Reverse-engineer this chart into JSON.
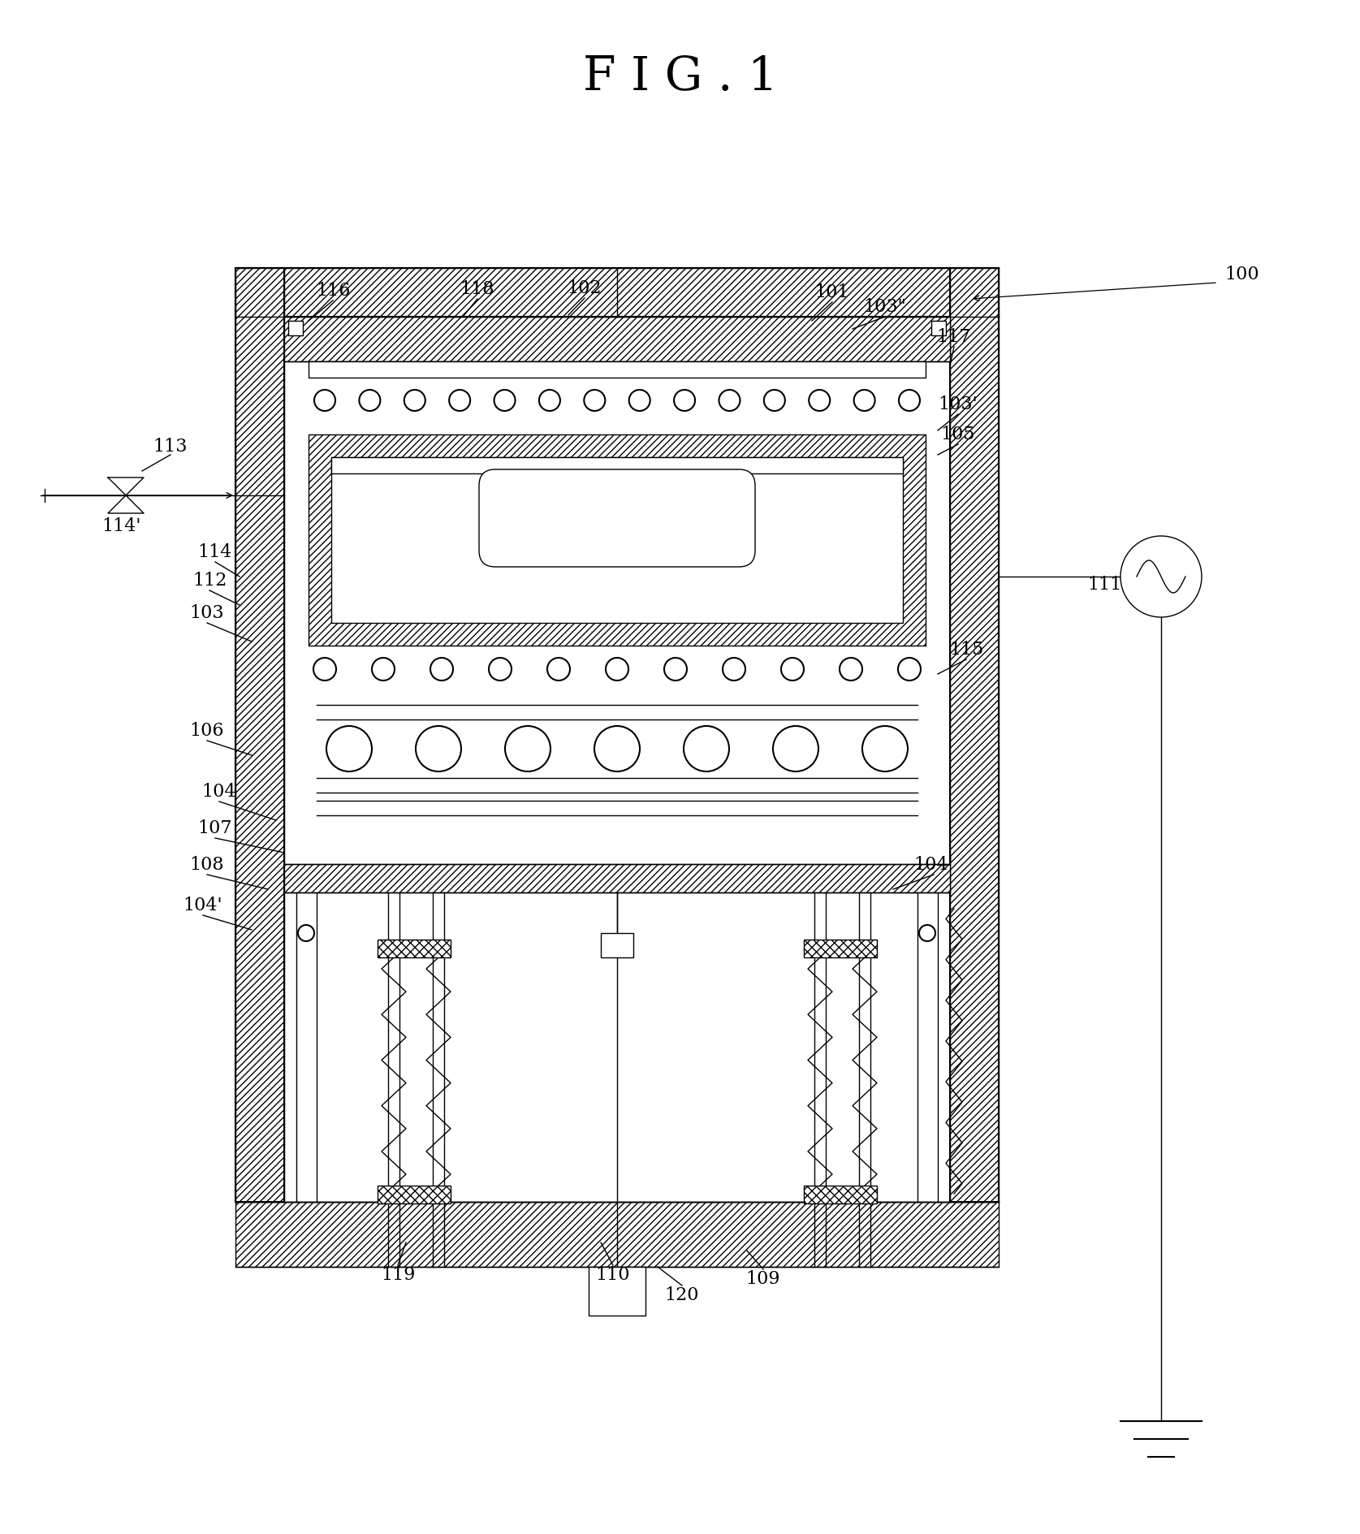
{
  "title": "F I G . 1",
  "bg_color": "#ffffff",
  "line_color": "#000000",
  "fig_width": 16.75,
  "fig_height": 18.89,
  "dpi": 100
}
